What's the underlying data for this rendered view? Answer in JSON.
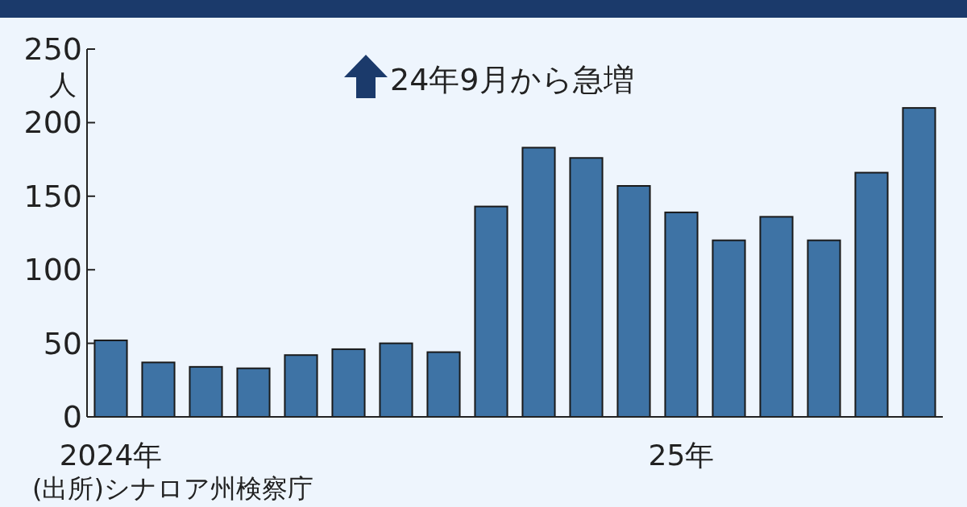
{
  "chart_data": {
    "type": "bar",
    "ylabel": "人",
    "annotations": [
      "24年9月から急増",
      "(出所)シナロア州検察庁"
    ],
    "categories": [
      "2024年",
      null,
      null,
      null,
      null,
      null,
      null,
      null,
      null,
      null,
      null,
      null,
      "25年",
      null,
      null,
      null,
      null,
      null
    ],
    "values": [
      52,
      37,
      34,
      33,
      42,
      46,
      50,
      44,
      143,
      183,
      176,
      157,
      139,
      120,
      136,
      120,
      166,
      210
    ],
    "color": "#3e73a5",
    "ylim": [
      0,
      250
    ],
    "yticks": [
      0,
      50,
      100,
      150,
      200,
      250
    ]
  }
}
